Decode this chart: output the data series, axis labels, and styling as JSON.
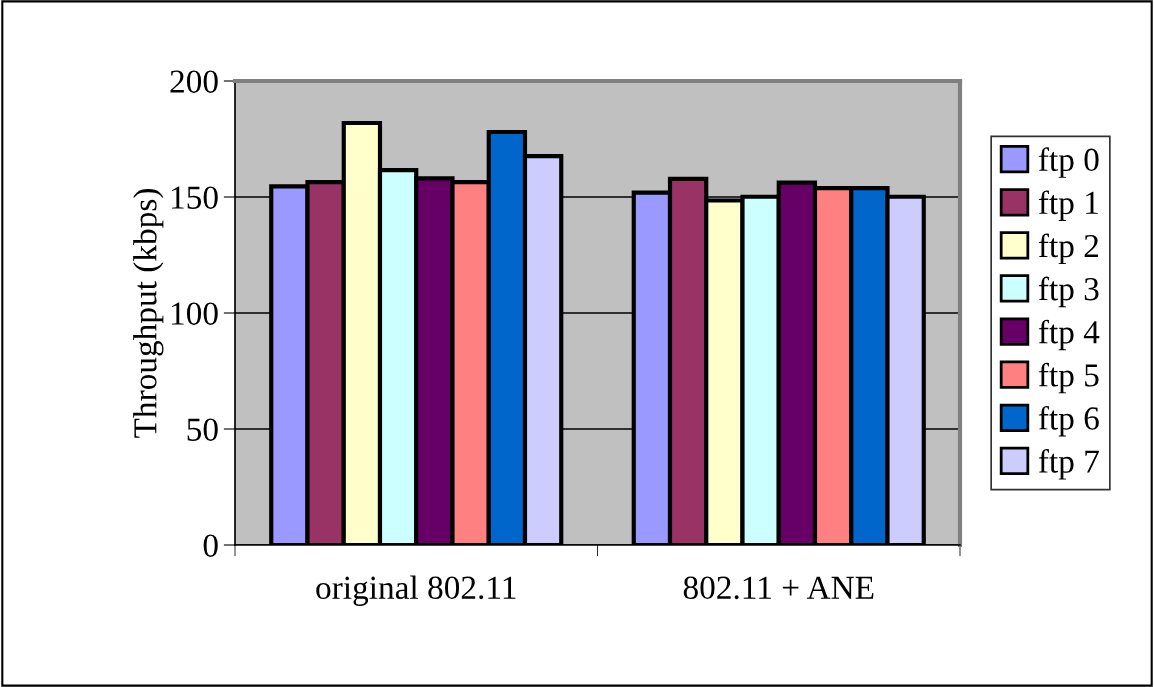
{
  "chart_data": {
    "type": "bar",
    "ylabel": "Throughput (kbps)",
    "categories": [
      "original 802.11",
      "802.11 + ANE"
    ],
    "series": [
      {
        "name": "ftp 0",
        "color": "#9999ff",
        "values": [
          154.6,
          151.9
        ]
      },
      {
        "name": "ftp 1",
        "color": "#993366",
        "values": [
          156.4,
          157.8
        ]
      },
      {
        "name": "ftp 2",
        "color": "#ffffcc",
        "values": [
          181.9,
          148.5
        ]
      },
      {
        "name": "ftp 3",
        "color": "#ccffff",
        "values": [
          161.6,
          150.1
        ]
      },
      {
        "name": "ftp 4",
        "color": "#660066",
        "values": [
          158,
          156.2
        ]
      },
      {
        "name": "ftp 5",
        "color": "#ff8080",
        "values": [
          156.4,
          153.8
        ]
      },
      {
        "name": "ftp 6",
        "color": "#0066cc",
        "values": [
          178,
          153.8
        ]
      },
      {
        "name": "ftp 7",
        "color": "#ccccff",
        "values": [
          167.6,
          150.1
        ]
      }
    ],
    "ylim": [
      0,
      200
    ],
    "yticks": [
      0,
      50,
      100,
      150,
      200
    ],
    "grid": "y",
    "legend": "right"
  }
}
